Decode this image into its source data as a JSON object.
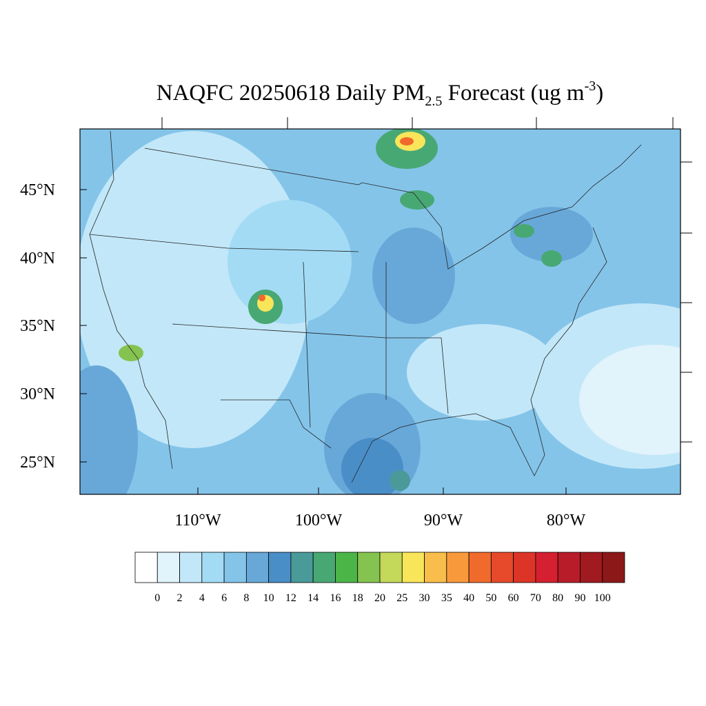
{
  "title": {
    "main": "NAQFC 20250618 Daily PM",
    "sub": "2.5",
    "rest": " Forecast (ug m",
    "sup": "-3",
    "end": ")"
  },
  "map": {
    "lat_labels": [
      "45°N",
      "40°N",
      "35°N",
      "30°N",
      "25°N"
    ],
    "lon_labels": [
      "110°W",
      "100°W",
      "90°W",
      "80°W"
    ]
  },
  "colorbar": {
    "labels": [
      "0",
      "2",
      "4",
      "6",
      "8",
      "10",
      "12",
      "14",
      "16",
      "18",
      "20",
      "25",
      "30",
      "35",
      "40",
      "50",
      "60",
      "70",
      "80",
      "90",
      "100"
    ],
    "colors": [
      "#ffffff",
      "#e1f3fb",
      "#c2e7f8",
      "#a3dbf5",
      "#84c4e9",
      "#68a8d9",
      "#4a8ec8",
      "#4a9a9a",
      "#48a874",
      "#4bb548",
      "#85c350",
      "#c4d85a",
      "#f8e55a",
      "#f8bd4a",
      "#f89a3c",
      "#f06a2c",
      "#e64a2a",
      "#dc3528",
      "#d42030",
      "#b81c28",
      "#a01a20",
      "#8c1818"
    ]
  }
}
